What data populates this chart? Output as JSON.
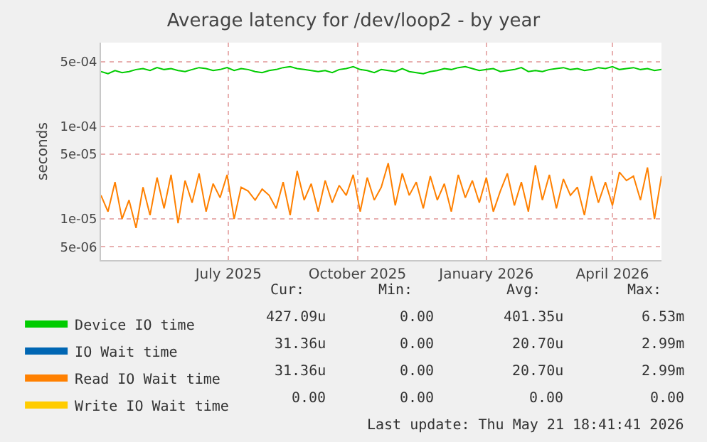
{
  "chart_data": {
    "type": "line",
    "title": "Average latency for /dev/loop2 - by year",
    "ylabel": "seconds",
    "x": [
      "2025-04-16",
      "2025-04-21",
      "2025-04-26",
      "2025-05-01",
      "2025-05-06",
      "2025-05-11",
      "2025-05-16",
      "2025-05-21",
      "2025-05-26",
      "2025-05-31",
      "2025-06-05",
      "2025-06-10",
      "2025-06-15",
      "2025-06-20",
      "2025-06-25",
      "2025-06-30",
      "2025-07-05",
      "2025-07-10",
      "2025-07-15",
      "2025-07-20",
      "2025-07-25",
      "2025-07-30",
      "2025-08-04",
      "2025-08-09",
      "2025-08-14",
      "2025-08-19",
      "2025-08-24",
      "2025-08-29",
      "2025-09-03",
      "2025-09-08",
      "2025-09-13",
      "2025-09-18",
      "2025-09-23",
      "2025-09-28",
      "2025-10-03",
      "2025-10-08",
      "2025-10-13",
      "2025-10-18",
      "2025-10-23",
      "2025-10-28",
      "2025-11-02",
      "2025-11-07",
      "2025-11-12",
      "2025-11-17",
      "2025-11-22",
      "2025-11-27",
      "2025-12-02",
      "2025-12-07",
      "2025-12-12",
      "2025-12-17",
      "2025-12-22",
      "2025-12-27",
      "2026-01-01",
      "2026-01-06",
      "2026-01-11",
      "2026-01-16",
      "2026-01-21",
      "2026-01-26",
      "2026-01-31",
      "2026-02-05",
      "2026-02-10",
      "2026-02-15",
      "2026-02-20",
      "2026-02-25",
      "2026-03-02",
      "2026-03-07",
      "2026-03-12",
      "2026-03-17",
      "2026-03-22",
      "2026-03-27",
      "2026-04-01",
      "2026-04-06",
      "2026-04-11",
      "2026-04-16",
      "2026-04-21",
      "2026-04-26",
      "2026-05-01",
      "2026-05-06",
      "2026-05-11",
      "2026-05-16",
      "2026-05-21"
    ],
    "series": [
      {
        "name": "Device IO time",
        "color": "#00cc00",
        "values": [
          0.00039,
          0.00037,
          0.0004,
          0.00038,
          0.00039,
          0.00041,
          0.00042,
          0.0004,
          0.00043,
          0.00041,
          0.00042,
          0.0004,
          0.00039,
          0.00041,
          0.00043,
          0.00042,
          0.0004,
          0.00041,
          0.00043,
          0.0004,
          0.00042,
          0.00041,
          0.00039,
          0.00038,
          0.0004,
          0.00041,
          0.00043,
          0.00044,
          0.00042,
          0.00041,
          0.0004,
          0.00039,
          0.0004,
          0.00038,
          0.00041,
          0.00042,
          0.00044,
          0.00041,
          0.0004,
          0.00038,
          0.00041,
          0.0004,
          0.00039,
          0.00042,
          0.00039,
          0.00038,
          0.00037,
          0.00039,
          0.0004,
          0.00042,
          0.00041,
          0.00043,
          0.00044,
          0.00042,
          0.0004,
          0.00041,
          0.00042,
          0.00039,
          0.0004,
          0.00041,
          0.00043,
          0.00039,
          0.0004,
          0.00039,
          0.00041,
          0.00042,
          0.00043,
          0.00041,
          0.00042,
          0.0004,
          0.00041,
          0.00043,
          0.00042,
          0.00044,
          0.00041,
          0.00042,
          0.00043,
          0.00041,
          0.00042,
          0.0004,
          0.00041
        ]
      },
      {
        "name": "IO Wait time",
        "color": "#0066b3",
        "values": [
          null,
          null,
          null,
          null,
          null,
          null,
          null,
          null,
          null,
          null,
          null,
          null,
          null,
          null,
          null,
          null,
          null,
          null,
          null,
          null,
          null,
          null,
          null,
          null,
          null,
          null,
          null,
          null,
          null,
          null,
          null,
          null,
          null,
          null,
          null,
          null,
          null,
          null,
          null,
          null,
          null,
          null,
          null,
          null,
          null,
          null,
          null,
          null,
          null,
          null,
          null,
          null,
          null,
          null,
          null,
          null,
          null,
          null,
          null,
          null,
          null,
          null,
          null,
          null,
          null,
          null,
          null,
          null,
          null,
          null,
          null,
          null,
          null,
          null,
          null,
          null,
          null,
          null,
          null,
          null,
          null
        ]
      },
      {
        "name": "Read IO Wait time",
        "color": "#ff8000",
        "values": [
          1.8e-05,
          1.2e-05,
          2.5e-05,
          1e-05,
          1.6e-05,
          8e-06,
          2.2e-05,
          1.1e-05,
          2.8e-05,
          1.3e-05,
          3e-05,
          9e-06,
          2.6e-05,
          1.5e-05,
          3.1e-05,
          1.2e-05,
          2.4e-05,
          1.7e-05,
          3e-05,
          1e-05,
          2.2e-05,
          2e-05,
          1.6e-05,
          2.1e-05,
          1.8e-05,
          1.3e-05,
          2.5e-05,
          1.1e-05,
          3.3e-05,
          1.6e-05,
          2.4e-05,
          1.2e-05,
          2.6e-05,
          1.5e-05,
          2.3e-05,
          1.8e-05,
          3e-05,
          1.2e-05,
          2.8e-05,
          1.6e-05,
          2.2e-05,
          4e-05,
          1.4e-05,
          3.1e-05,
          1.8e-05,
          2.5e-05,
          1.3e-05,
          2.9e-05,
          1.6e-05,
          2.4e-05,
          1.2e-05,
          3e-05,
          1.7e-05,
          2.6e-05,
          1.5e-05,
          2.8e-05,
          1.2e-05,
          2e-05,
          3.1e-05,
          1.4e-05,
          2.5e-05,
          1.2e-05,
          3.8e-05,
          1.6e-05,
          3e-05,
          1.3e-05,
          2.7e-05,
          1.8e-05,
          2.2e-05,
          1.1e-05,
          2.9e-05,
          1.5e-05,
          2.5e-05,
          1.4e-05,
          3.2e-05,
          2.6e-05,
          2.9e-05,
          1.6e-05,
          3.6e-05,
          1e-05,
          2.9e-05
        ]
      },
      {
        "name": "Write IO Wait time",
        "color": "#ffcc00",
        "values": [
          null,
          null,
          null,
          null,
          null,
          null,
          null,
          null,
          null,
          null,
          null,
          null,
          null,
          null,
          null,
          null,
          null,
          null,
          null,
          null,
          null,
          null,
          null,
          null,
          null,
          null,
          null,
          null,
          null,
          null,
          null,
          null,
          null,
          null,
          null,
          null,
          null,
          null,
          null,
          null,
          null,
          null,
          null,
          null,
          null,
          null,
          null,
          null,
          null,
          null,
          null,
          null,
          null,
          null,
          null,
          null,
          null,
          null,
          null,
          null,
          null,
          null,
          null,
          null,
          null,
          null,
          null,
          null,
          null,
          null,
          null,
          null,
          null,
          null,
          null,
          null,
          null,
          null,
          null,
          null,
          null
        ]
      }
    ],
    "log": "y",
    "xlim": [
      "2025-04-16",
      "2026-05-21"
    ],
    "ylim": [
      3.6e-06,
      0.0008
    ],
    "xticks": [
      {
        "value": "2025-07-16",
        "label": "July 2025"
      },
      {
        "value": "2025-10-16",
        "label": "October 2025"
      },
      {
        "value": "2026-01-16",
        "label": "January 2026"
      },
      {
        "value": "2026-04-16",
        "label": "April 2026"
      }
    ],
    "yticks": [
      {
        "value": 5e-06,
        "label": "5e-06"
      },
      {
        "value": 1e-05,
        "label": "1e-05"
      },
      {
        "value": 5e-05,
        "label": "5e-05"
      },
      {
        "value": 0.0001,
        "label": "1e-04"
      },
      {
        "value": 0.0005,
        "label": "5e-04"
      }
    ],
    "grid": true,
    "legend": "bottom",
    "annotations": [
      "Cur:",
      "Min:",
      "Avg:",
      "Max:",
      "427.09u",
      "0.00",
      "401.35u",
      "6.53m",
      "31.36u",
      "0.00",
      "20.70u",
      "2.99m",
      "31.36u",
      "0.00",
      "20.70u",
      "2.99m",
      "0.00",
      "0.00",
      "0.00",
      "0.00",
      "Last update: Thu May 21 18:41:41 2026"
    ]
  }
}
